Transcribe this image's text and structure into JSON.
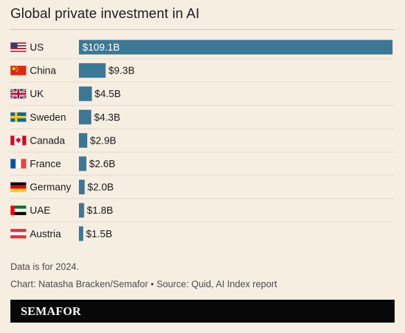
{
  "title": "Global private investment in AI",
  "note": "Data is for 2024.",
  "credit": "Chart: Natasha Bracken/Semafor • Source: Quid, AI Index report",
  "brand": "SEMAFOR",
  "colors": {
    "background": "#f7eee2",
    "bar": "#3a7895",
    "footer": "#080808"
  },
  "chart_data": {
    "type": "bar",
    "orientation": "horizontal",
    "title": "Global private investment in AI",
    "categories": [
      "US",
      "China",
      "UK",
      "Sweden",
      "Canada",
      "France",
      "Germany",
      "UAE",
      "Austria"
    ],
    "flags": [
      "us-flag-icon",
      "china-flag-icon",
      "uk-flag-icon",
      "sweden-flag-icon",
      "canada-flag-icon",
      "france-flag-icon",
      "germany-flag-icon",
      "uae-flag-icon",
      "austria-flag-icon"
    ],
    "values": [
      109.1,
      9.3,
      4.5,
      4.3,
      2.9,
      2.6,
      2.0,
      1.8,
      1.5
    ],
    "value_labels": [
      "$109.1B",
      "$9.3B",
      "$4.5B",
      "$4.3B",
      "$2.9B",
      "$2.6B",
      "$2.0B",
      "$1.8B",
      "$1.5B"
    ],
    "unit": "USD billions",
    "xlim": [
      0,
      109.1
    ],
    "grid": false
  }
}
